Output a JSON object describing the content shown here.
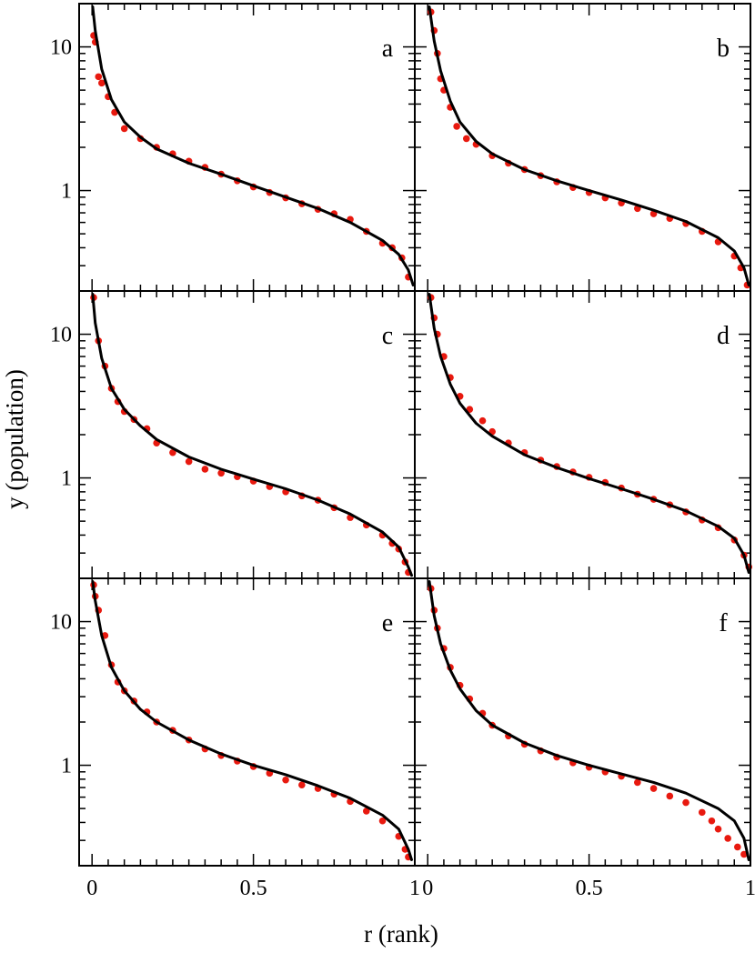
{
  "chart_data": {
    "type": "scatter",
    "layout": "3x2 grid of panels sharing x and y axes",
    "xlabel": "r (rank)",
    "ylabel": "y (population)",
    "xlim": [
      -0.04,
      1.0
    ],
    "ylim": [
      0.2,
      20
    ],
    "y_scale": "log",
    "x_ticks": [
      0,
      0.5,
      1
    ],
    "x_tick_labels": [
      "0",
      "0.5",
      "1"
    ],
    "y_ticks": [
      1,
      10
    ],
    "y_tick_labels": [
      "1",
      "10"
    ],
    "grid": false,
    "legend": "none",
    "colors": {
      "points": "#e8190f",
      "fit_line": "#000000"
    },
    "panels": [
      {
        "label": "a",
        "row": 0,
        "col": 0,
        "data_points": [
          [
            0.005,
            12.0
          ],
          [
            0.01,
            10.8
          ],
          [
            0.02,
            6.2
          ],
          [
            0.03,
            5.6
          ],
          [
            0.05,
            4.5
          ],
          [
            0.07,
            3.5
          ],
          [
            0.1,
            2.7
          ],
          [
            0.15,
            2.3
          ],
          [
            0.2,
            2.0
          ],
          [
            0.25,
            1.8
          ],
          [
            0.3,
            1.6
          ],
          [
            0.35,
            1.45
          ],
          [
            0.4,
            1.3
          ],
          [
            0.45,
            1.17
          ],
          [
            0.5,
            1.06
          ],
          [
            0.55,
            0.97
          ],
          [
            0.6,
            0.89
          ],
          [
            0.65,
            0.81
          ],
          [
            0.7,
            0.74
          ],
          [
            0.75,
            0.69
          ],
          [
            0.8,
            0.63
          ],
          [
            0.85,
            0.52
          ],
          [
            0.9,
            0.43
          ],
          [
            0.93,
            0.4
          ],
          [
            0.96,
            0.34
          ],
          [
            0.98,
            0.25
          ]
        ],
        "fit_curve": [
          [
            0.002,
            19.0
          ],
          [
            0.01,
            13.0
          ],
          [
            0.03,
            7.0
          ],
          [
            0.06,
            4.3
          ],
          [
            0.1,
            3.0
          ],
          [
            0.15,
            2.35
          ],
          [
            0.2,
            1.95
          ],
          [
            0.3,
            1.55
          ],
          [
            0.4,
            1.3
          ],
          [
            0.5,
            1.08
          ],
          [
            0.6,
            0.9
          ],
          [
            0.7,
            0.75
          ],
          [
            0.8,
            0.6
          ],
          [
            0.9,
            0.45
          ],
          [
            0.95,
            0.36
          ],
          [
            0.98,
            0.28
          ],
          [
            0.995,
            0.22
          ]
        ]
      },
      {
        "label": "b",
        "row": 0,
        "col": 1,
        "data_points": [
          [
            0.01,
            17.5
          ],
          [
            0.02,
            13.0
          ],
          [
            0.03,
            9.0
          ],
          [
            0.04,
            6.0
          ],
          [
            0.05,
            5.0
          ],
          [
            0.07,
            3.8
          ],
          [
            0.09,
            2.8
          ],
          [
            0.12,
            2.3
          ],
          [
            0.15,
            2.1
          ],
          [
            0.2,
            1.75
          ],
          [
            0.25,
            1.55
          ],
          [
            0.3,
            1.4
          ],
          [
            0.35,
            1.27
          ],
          [
            0.4,
            1.15
          ],
          [
            0.45,
            1.05
          ],
          [
            0.5,
            0.97
          ],
          [
            0.55,
            0.89
          ],
          [
            0.6,
            0.82
          ],
          [
            0.65,
            0.75
          ],
          [
            0.7,
            0.69
          ],
          [
            0.75,
            0.64
          ],
          [
            0.8,
            0.59
          ],
          [
            0.85,
            0.52
          ],
          [
            0.9,
            0.44
          ],
          [
            0.95,
            0.35
          ],
          [
            0.97,
            0.29
          ],
          [
            0.99,
            0.22
          ]
        ],
        "fit_curve": [
          [
            0.005,
            19.0
          ],
          [
            0.02,
            11.0
          ],
          [
            0.04,
            6.8
          ],
          [
            0.07,
            4.2
          ],
          [
            0.1,
            3.0
          ],
          [
            0.15,
            2.2
          ],
          [
            0.2,
            1.8
          ],
          [
            0.3,
            1.4
          ],
          [
            0.4,
            1.17
          ],
          [
            0.5,
            1.0
          ],
          [
            0.6,
            0.86
          ],
          [
            0.7,
            0.73
          ],
          [
            0.8,
            0.61
          ],
          [
            0.9,
            0.47
          ],
          [
            0.95,
            0.38
          ],
          [
            0.98,
            0.29
          ],
          [
            0.995,
            0.22
          ]
        ]
      },
      {
        "label": "c",
        "row": 1,
        "col": 0,
        "data_points": [
          [
            0.005,
            18.0
          ],
          [
            0.02,
            9.0
          ],
          [
            0.04,
            6.0
          ],
          [
            0.06,
            4.2
          ],
          [
            0.08,
            3.4
          ],
          [
            0.1,
            2.9
          ],
          [
            0.13,
            2.55
          ],
          [
            0.17,
            2.2
          ],
          [
            0.2,
            1.75
          ],
          [
            0.25,
            1.5
          ],
          [
            0.3,
            1.3
          ],
          [
            0.35,
            1.15
          ],
          [
            0.4,
            1.08
          ],
          [
            0.45,
            1.02
          ],
          [
            0.5,
            0.95
          ],
          [
            0.55,
            0.87
          ],
          [
            0.6,
            0.8
          ],
          [
            0.65,
            0.75
          ],
          [
            0.7,
            0.7
          ],
          [
            0.75,
            0.62
          ],
          [
            0.8,
            0.53
          ],
          [
            0.85,
            0.47
          ],
          [
            0.9,
            0.4
          ],
          [
            0.93,
            0.35
          ],
          [
            0.95,
            0.32
          ],
          [
            0.97,
            0.26
          ],
          [
            0.98,
            0.22
          ]
        ],
        "fit_curve": [
          [
            0.002,
            19.0
          ],
          [
            0.01,
            12.0
          ],
          [
            0.03,
            6.8
          ],
          [
            0.06,
            4.2
          ],
          [
            0.1,
            3.0
          ],
          [
            0.15,
            2.3
          ],
          [
            0.2,
            1.85
          ],
          [
            0.3,
            1.4
          ],
          [
            0.4,
            1.15
          ],
          [
            0.5,
            0.98
          ],
          [
            0.6,
            0.84
          ],
          [
            0.7,
            0.7
          ],
          [
            0.8,
            0.56
          ],
          [
            0.9,
            0.42
          ],
          [
            0.95,
            0.33
          ],
          [
            0.98,
            0.24
          ],
          [
            0.99,
            0.21
          ]
        ]
      },
      {
        "label": "d",
        "row": 1,
        "col": 1,
        "data_points": [
          [
            0.01,
            18.0
          ],
          [
            0.02,
            13.0
          ],
          [
            0.03,
            10.0
          ],
          [
            0.05,
            7.0
          ],
          [
            0.07,
            5.0
          ],
          [
            0.1,
            3.7
          ],
          [
            0.13,
            3.0
          ],
          [
            0.17,
            2.5
          ],
          [
            0.2,
            2.1
          ],
          [
            0.25,
            1.75
          ],
          [
            0.3,
            1.5
          ],
          [
            0.35,
            1.33
          ],
          [
            0.4,
            1.2
          ],
          [
            0.45,
            1.1
          ],
          [
            0.5,
            1.01
          ],
          [
            0.55,
            0.93
          ],
          [
            0.6,
            0.85
          ],
          [
            0.65,
            0.77
          ],
          [
            0.7,
            0.71
          ],
          [
            0.75,
            0.65
          ],
          [
            0.8,
            0.58
          ],
          [
            0.85,
            0.51
          ],
          [
            0.9,
            0.45
          ],
          [
            0.95,
            0.37
          ],
          [
            0.98,
            0.29
          ],
          [
            0.995,
            0.24
          ]
        ],
        "fit_curve": [
          [
            0.005,
            19.0
          ],
          [
            0.02,
            11.0
          ],
          [
            0.04,
            7.0
          ],
          [
            0.07,
            4.5
          ],
          [
            0.1,
            3.3
          ],
          [
            0.15,
            2.4
          ],
          [
            0.2,
            1.95
          ],
          [
            0.3,
            1.45
          ],
          [
            0.4,
            1.18
          ],
          [
            0.5,
            0.99
          ],
          [
            0.6,
            0.84
          ],
          [
            0.7,
            0.71
          ],
          [
            0.8,
            0.59
          ],
          [
            0.9,
            0.46
          ],
          [
            0.95,
            0.38
          ],
          [
            0.98,
            0.29
          ],
          [
            0.995,
            0.22
          ]
        ]
      },
      {
        "label": "e",
        "row": 2,
        "col": 0,
        "data_points": [
          [
            0.005,
            18.0
          ],
          [
            0.01,
            15.0
          ],
          [
            0.02,
            12.0
          ],
          [
            0.04,
            8.0
          ],
          [
            0.06,
            5.0
          ],
          [
            0.08,
            3.8
          ],
          [
            0.1,
            3.3
          ],
          [
            0.13,
            2.8
          ],
          [
            0.17,
            2.35
          ],
          [
            0.2,
            2.0
          ],
          [
            0.25,
            1.75
          ],
          [
            0.3,
            1.5
          ],
          [
            0.35,
            1.3
          ],
          [
            0.4,
            1.17
          ],
          [
            0.45,
            1.07
          ],
          [
            0.5,
            0.98
          ],
          [
            0.55,
            0.88
          ],
          [
            0.6,
            0.79
          ],
          [
            0.65,
            0.73
          ],
          [
            0.7,
            0.69
          ],
          [
            0.75,
            0.63
          ],
          [
            0.8,
            0.56
          ],
          [
            0.85,
            0.48
          ],
          [
            0.9,
            0.41
          ],
          [
            0.95,
            0.32
          ],
          [
            0.97,
            0.26
          ],
          [
            0.98,
            0.23
          ]
        ],
        "fit_curve": [
          [
            0.002,
            19.0
          ],
          [
            0.01,
            14.0
          ],
          [
            0.03,
            8.0
          ],
          [
            0.06,
            4.8
          ],
          [
            0.1,
            3.3
          ],
          [
            0.15,
            2.45
          ],
          [
            0.2,
            2.0
          ],
          [
            0.3,
            1.5
          ],
          [
            0.4,
            1.2
          ],
          [
            0.5,
            1.0
          ],
          [
            0.6,
            0.86
          ],
          [
            0.7,
            0.72
          ],
          [
            0.8,
            0.59
          ],
          [
            0.9,
            0.45
          ],
          [
            0.95,
            0.36
          ],
          [
            0.98,
            0.26
          ],
          [
            0.99,
            0.22
          ]
        ]
      },
      {
        "label": "f",
        "row": 2,
        "col": 1,
        "data_points": [
          [
            0.01,
            17.0
          ],
          [
            0.02,
            12.0
          ],
          [
            0.03,
            9.0
          ],
          [
            0.05,
            6.5
          ],
          [
            0.07,
            4.8
          ],
          [
            0.1,
            3.6
          ],
          [
            0.13,
            2.9
          ],
          [
            0.17,
            2.3
          ],
          [
            0.2,
            1.9
          ],
          [
            0.25,
            1.6
          ],
          [
            0.3,
            1.4
          ],
          [
            0.35,
            1.26
          ],
          [
            0.4,
            1.14
          ],
          [
            0.45,
            1.04
          ],
          [
            0.5,
            0.97
          ],
          [
            0.55,
            0.9
          ],
          [
            0.6,
            0.84
          ],
          [
            0.65,
            0.76
          ],
          [
            0.7,
            0.69
          ],
          [
            0.75,
            0.61
          ],
          [
            0.8,
            0.55
          ],
          [
            0.85,
            0.47
          ],
          [
            0.88,
            0.41
          ],
          [
            0.9,
            0.36
          ],
          [
            0.93,
            0.31
          ],
          [
            0.96,
            0.27
          ],
          [
            0.98,
            0.24
          ]
        ],
        "fit_curve": [
          [
            0.005,
            19.0
          ],
          [
            0.02,
            11.0
          ],
          [
            0.04,
            7.0
          ],
          [
            0.07,
            4.6
          ],
          [
            0.1,
            3.4
          ],
          [
            0.15,
            2.4
          ],
          [
            0.2,
            1.9
          ],
          [
            0.3,
            1.43
          ],
          [
            0.4,
            1.17
          ],
          [
            0.5,
            1.0
          ],
          [
            0.6,
            0.87
          ],
          [
            0.7,
            0.76
          ],
          [
            0.8,
            0.64
          ],
          [
            0.9,
            0.5
          ],
          [
            0.95,
            0.41
          ],
          [
            0.98,
            0.31
          ],
          [
            0.995,
            0.22
          ]
        ]
      }
    ]
  }
}
